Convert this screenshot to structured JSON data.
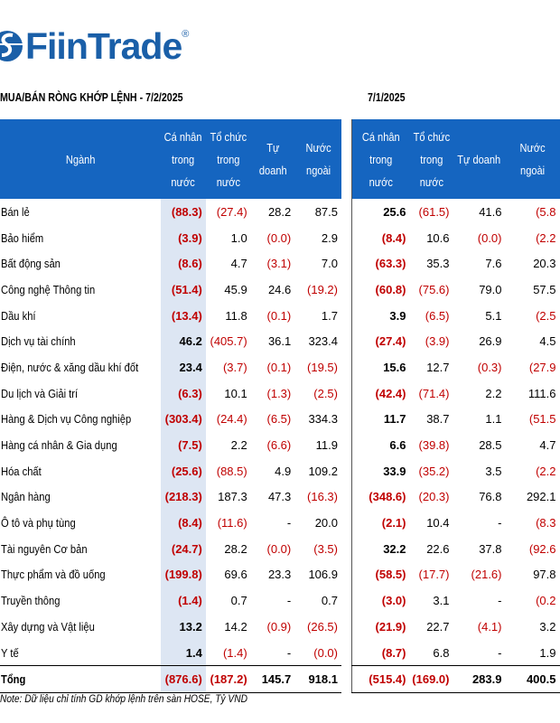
{
  "brand": {
    "name": "FiinTrade",
    "reg": "®"
  },
  "titles": {
    "left": "MUA/BÁN RÒNG KHỚP LỆNH - 7/2/2025",
    "right": "7/1/2025"
  },
  "headers": {
    "sector": "Ngành",
    "left": [
      "Cá nhân\ntrong\nnước",
      "Tổ chức\ntrong\nnước",
      "Tự doanh",
      "Nước\nngoài"
    ],
    "right": [
      "Cá nhân\ntrong nước",
      "Tổ chức\ntrong\nnước",
      "Tự doanh",
      "Nước\nngoài"
    ]
  },
  "rows": [
    {
      "sector": "Bán lẻ",
      "left": [
        "(88.3)",
        "(27.4)",
        "28.2",
        "87.5"
      ],
      "right": [
        "25.6",
        "(61.5)",
        "41.6",
        "(5.8"
      ]
    },
    {
      "sector": "Bảo hiểm",
      "left": [
        "(3.9)",
        "1.0",
        "(0.0)",
        "2.9"
      ],
      "right": [
        "(8.4)",
        "10.6",
        "(0.0)",
        "(2.2"
      ]
    },
    {
      "sector": "Bất động sản",
      "left": [
        "(8.6)",
        "4.7",
        "(3.1)",
        "7.0"
      ],
      "right": [
        "(63.3)",
        "35.3",
        "7.6",
        "20.3"
      ]
    },
    {
      "sector": "Công nghệ Thông tin",
      "left": [
        "(51.4)",
        "45.9",
        "24.6",
        "(19.2)"
      ],
      "right": [
        "(60.8)",
        "(75.6)",
        "79.0",
        "57.5"
      ]
    },
    {
      "sector": "Dầu khí",
      "left": [
        "(13.4)",
        "11.8",
        "(0.1)",
        "1.7"
      ],
      "right": [
        "3.9",
        "(6.5)",
        "5.1",
        "(2.5"
      ]
    },
    {
      "sector": "Dịch vụ tài chính",
      "left": [
        "46.2",
        "(405.7)",
        "36.1",
        "323.4"
      ],
      "right": [
        "(27.4)",
        "(3.9)",
        "26.9",
        "4.5"
      ]
    },
    {
      "sector": "Điện, nước & xăng dầu khí đốt",
      "left": [
        "23.4",
        "(3.7)",
        "(0.1)",
        "(19.5)"
      ],
      "right": [
        "15.6",
        "12.7",
        "(0.3)",
        "(27.9"
      ]
    },
    {
      "sector": "Du lịch và Giải trí",
      "left": [
        "(6.3)",
        "10.1",
        "(1.3)",
        "(2.5)"
      ],
      "right": [
        "(42.4)",
        "(71.4)",
        "2.2",
        "111.6"
      ]
    },
    {
      "sector": "Hàng & Dịch vụ Công nghiệp",
      "left": [
        "(303.4)",
        "(24.4)",
        "(6.5)",
        "334.3"
      ],
      "right": [
        "11.7",
        "38.7",
        "1.1",
        "(51.5"
      ]
    },
    {
      "sector": "Hàng cá nhân & Gia dụng",
      "left": [
        "(7.5)",
        "2.2",
        "(6.6)",
        "11.9"
      ],
      "right": [
        "6.6",
        "(39.8)",
        "28.5",
        "4.7"
      ]
    },
    {
      "sector": "Hóa chất",
      "left": [
        "(25.6)",
        "(88.5)",
        "4.9",
        "109.2"
      ],
      "right": [
        "33.9",
        "(35.2)",
        "3.5",
        "(2.2"
      ]
    },
    {
      "sector": "Ngân hàng",
      "left": [
        "(218.3)",
        "187.3",
        "47.3",
        "(16.3)"
      ],
      "right": [
        "(348.6)",
        "(20.3)",
        "76.8",
        "292.1"
      ]
    },
    {
      "sector": "Ô tô và phụ tùng",
      "left": [
        "(8.4)",
        "(11.6)",
        "-",
        "20.0"
      ],
      "right": [
        "(2.1)",
        "10.4",
        "-",
        "(8.3"
      ]
    },
    {
      "sector": "Tài nguyên Cơ bản",
      "left": [
        "(24.7)",
        "28.2",
        "(0.0)",
        "(3.5)"
      ],
      "right": [
        "32.2",
        "22.6",
        "37.8",
        "(92.6"
      ]
    },
    {
      "sector": "Thực phẩm và đồ uống",
      "left": [
        "(199.8)",
        "69.6",
        "23.3",
        "106.9"
      ],
      "right": [
        "(58.5)",
        "(17.7)",
        "(21.6)",
        "97.8"
      ]
    },
    {
      "sector": "Truyền thông",
      "left": [
        "(1.4)",
        "0.7",
        "-",
        "0.7"
      ],
      "right": [
        "(3.0)",
        "3.1",
        "-",
        "(0.2"
      ]
    },
    {
      "sector": "Xây dựng và Vật liệu",
      "left": [
        "13.2",
        "14.2",
        "(0.9)",
        "(26.5)"
      ],
      "right": [
        "(21.9)",
        "22.7",
        "(4.1)",
        "3.2"
      ]
    },
    {
      "sector": "Y tế",
      "left": [
        "1.4",
        "(1.4)",
        "-",
        "(0.0)"
      ],
      "right": [
        "(8.7)",
        "6.8",
        "-",
        "1.9"
      ]
    }
  ],
  "total": {
    "sector": "Tổng",
    "left": [
      "(876.6)",
      "(187.2)",
      "145.7",
      "918.1"
    ],
    "right": [
      "(515.4)",
      "(169.0)",
      "283.9",
      "400.5"
    ]
  },
  "note": "Note: Dữ liệu chỉ tính GD khớp lệnh trên sàn HOSE, Tỷ VND",
  "colors": {
    "header": "#1565c0",
    "highlight": "#dde6f3",
    "negative": "#c00000",
    "brand": "#1a5fa8"
  }
}
